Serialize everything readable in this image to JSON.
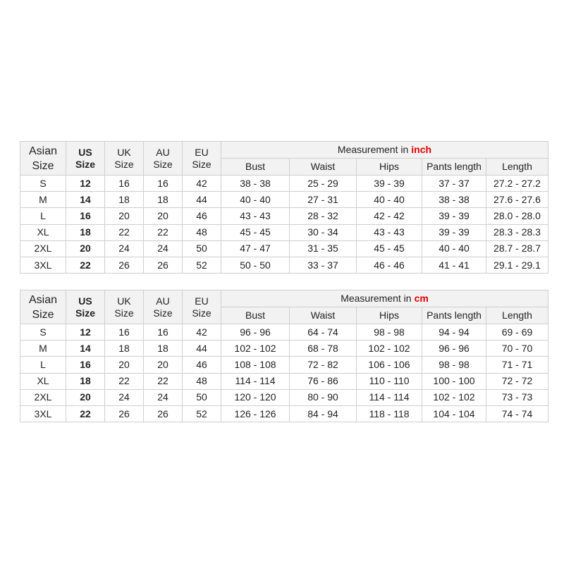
{
  "tables": [
    {
      "header": {
        "columns": [
          [
            "Asian",
            "Size"
          ],
          [
            "US",
            "Size"
          ],
          [
            "UK",
            "Size"
          ],
          [
            "AU",
            "Size"
          ],
          [
            "EU",
            "Size"
          ]
        ],
        "measurement_label": "Measurement in",
        "unit": "inch",
        "measurements": [
          "Bust",
          "Waist",
          "Hips",
          "Pants length",
          "Length"
        ]
      },
      "rows": [
        [
          "S",
          "12",
          "16",
          "16",
          "42",
          "38 - 38",
          "25 - 29",
          "39 - 39",
          "37 - 37",
          "27.2 - 27.2"
        ],
        [
          "M",
          "14",
          "18",
          "18",
          "44",
          "40 - 40",
          "27 - 31",
          "40 - 40",
          "38 - 38",
          "27.6 - 27.6"
        ],
        [
          "L",
          "16",
          "20",
          "20",
          "46",
          "43 - 43",
          "28 - 32",
          "42 - 42",
          "39 - 39",
          "28.0 - 28.0"
        ],
        [
          "XL",
          "18",
          "22",
          "22",
          "48",
          "45 - 45",
          "30 - 34",
          "43 - 43",
          "39 - 39",
          "28.3 - 28.3"
        ],
        [
          "2XL",
          "20",
          "24",
          "24",
          "50",
          "47 - 47",
          "31 - 35",
          "45 - 45",
          "40 - 40",
          "28.7 - 28.7"
        ],
        [
          "3XL",
          "22",
          "26",
          "26",
          "52",
          "50 - 50",
          "33 - 37",
          "46 - 46",
          "41 - 41",
          "29.1 - 29.1"
        ]
      ]
    },
    {
      "header": {
        "columns": [
          [
            "Asian",
            "Size"
          ],
          [
            "US",
            "Size"
          ],
          [
            "UK",
            "Size"
          ],
          [
            "AU",
            "Size"
          ],
          [
            "EU",
            "Size"
          ]
        ],
        "measurement_label": "Measurement in",
        "unit": "cm",
        "measurements": [
          "Bust",
          "Waist",
          "Hips",
          "Pants length",
          "Length"
        ]
      },
      "rows": [
        [
          "S",
          "12",
          "16",
          "16",
          "42",
          "96 - 96",
          "64 - 74",
          "98 - 98",
          "94 - 94",
          "69 - 69"
        ],
        [
          "M",
          "14",
          "18",
          "18",
          "44",
          "102 - 102",
          "68 - 78",
          "102 - 102",
          "96 - 96",
          "70 - 70"
        ],
        [
          "L",
          "16",
          "20",
          "20",
          "46",
          "108 - 108",
          "72 - 82",
          "106 - 106",
          "98 - 98",
          "71 - 71"
        ],
        [
          "XL",
          "18",
          "22",
          "22",
          "48",
          "114 - 114",
          "76 - 86",
          "110 - 110",
          "100 - 100",
          "72 - 72"
        ],
        [
          "2XL",
          "20",
          "24",
          "24",
          "50",
          "120 - 120",
          "80 - 90",
          "114 - 114",
          "102 - 102",
          "73 - 73"
        ],
        [
          "3XL",
          "22",
          "26",
          "26",
          "52",
          "126 - 126",
          "84 - 94",
          "118 - 118",
          "104 - 104",
          "74 - 74"
        ]
      ]
    }
  ]
}
